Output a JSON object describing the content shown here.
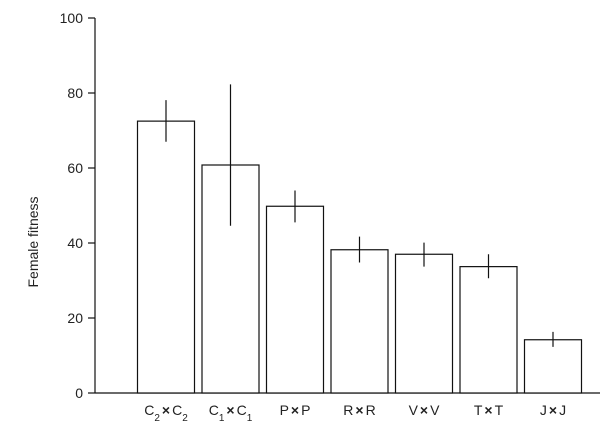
{
  "chart_data": {
    "type": "bar",
    "ylabel": "Female fitness",
    "xlabel": "",
    "ylim": [
      0,
      100
    ],
    "yticks": [
      "0",
      "20",
      "40",
      "60",
      "80",
      "100"
    ],
    "categories": [
      {
        "main1": "C",
        "sub1": "2",
        "cross": "×",
        "main2": "C",
        "sub2": "2"
      },
      {
        "main1": "C",
        "sub1": "1",
        "cross": "×",
        "main2": "C",
        "sub2": "1"
      },
      {
        "main1": "P",
        "sub1": "",
        "cross": "×",
        "main2": "P",
        "sub2": ""
      },
      {
        "main1": "R",
        "sub1": "",
        "cross": "×",
        "main2": "R",
        "sub2": ""
      },
      {
        "main1": "V",
        "sub1": "",
        "cross": "×",
        "main2": "V",
        "sub2": ""
      },
      {
        "main1": "T",
        "sub1": "",
        "cross": "×",
        "main2": "T",
        "sub2": ""
      },
      {
        "main1": "J",
        "sub1": "",
        "cross": "×",
        "main2": "J",
        "sub2": ""
      }
    ],
    "values": [
      72.5,
      60.8,
      49.8,
      38.2,
      37.0,
      33.7,
      14.2
    ],
    "error_high": [
      78.1,
      82.3,
      54.0,
      41.7,
      40.1,
      37.0,
      16.3
    ],
    "error_low": [
      67.0,
      44.6,
      45.5,
      34.8,
      33.7,
      30.6,
      12.3
    ],
    "grid": false,
    "bar_fill": "#ffffff",
    "bar_stroke": "#111111"
  }
}
